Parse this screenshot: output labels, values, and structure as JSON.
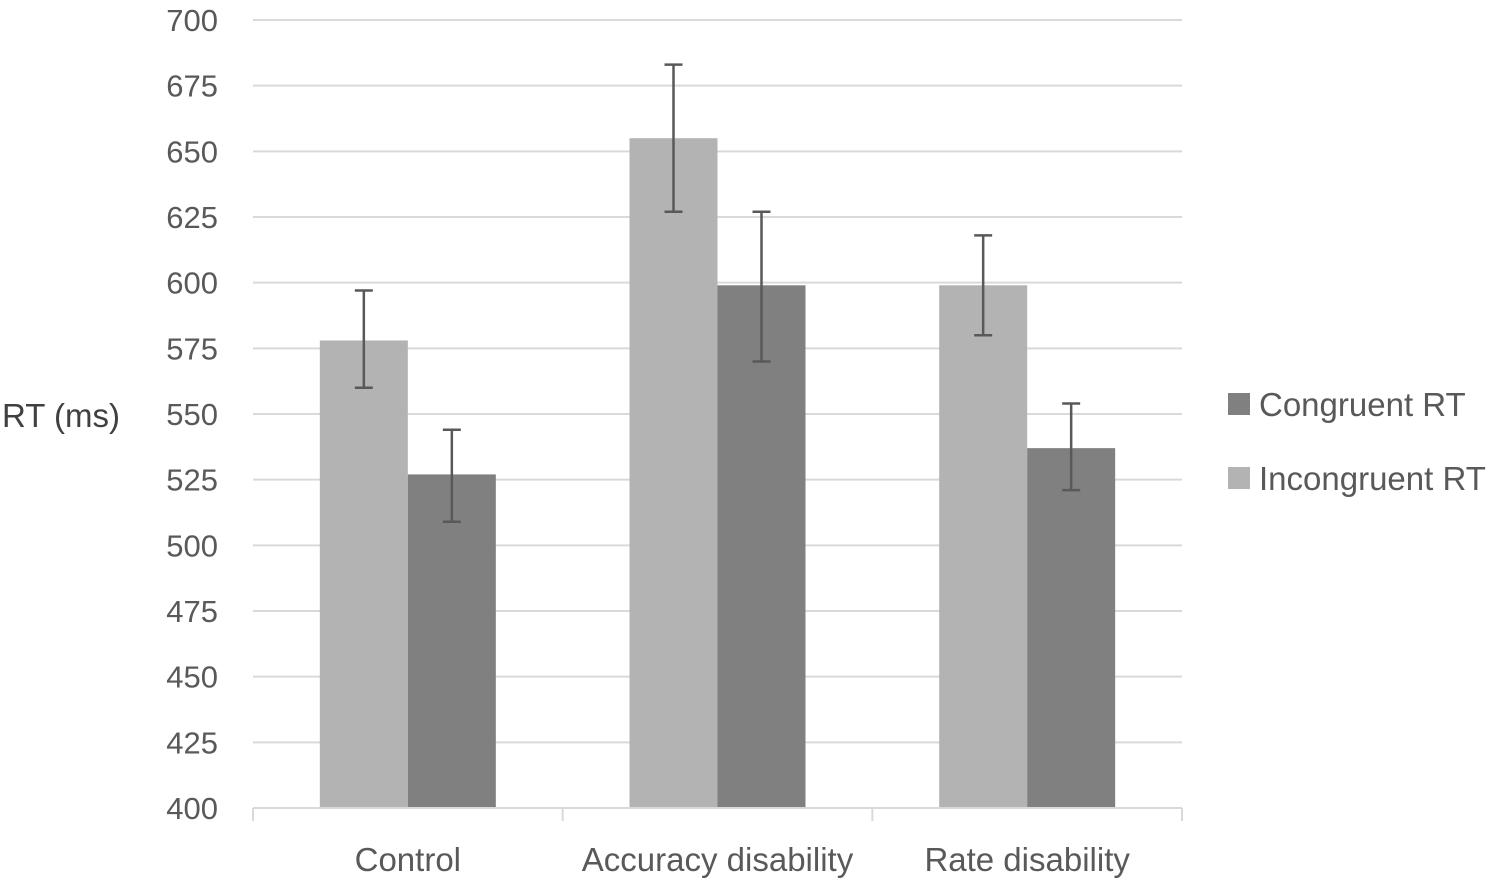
{
  "chart_data": {
    "type": "bar",
    "title": "",
    "xlabel": "",
    "ylabel": "RT (ms)",
    "ylim": [
      400,
      700
    ],
    "ytick_step": 25,
    "grid": true,
    "legend_position": "right",
    "categories": [
      "Control",
      "Accuracy disability",
      "Rate disability"
    ],
    "series": [
      {
        "name": "Incongruent RT",
        "color": "#b3b3b3",
        "values": [
          578,
          655,
          599
        ],
        "error_low": [
          560,
          627,
          580
        ],
        "error_high": [
          597,
          683,
          618
        ]
      },
      {
        "name": "Congruent RT",
        "color": "#808080",
        "values": [
          527,
          599,
          537
        ],
        "error_low": [
          509,
          570,
          521
        ],
        "error_high": [
          544,
          627,
          554
        ]
      }
    ],
    "legend_order": [
      1,
      0
    ]
  }
}
